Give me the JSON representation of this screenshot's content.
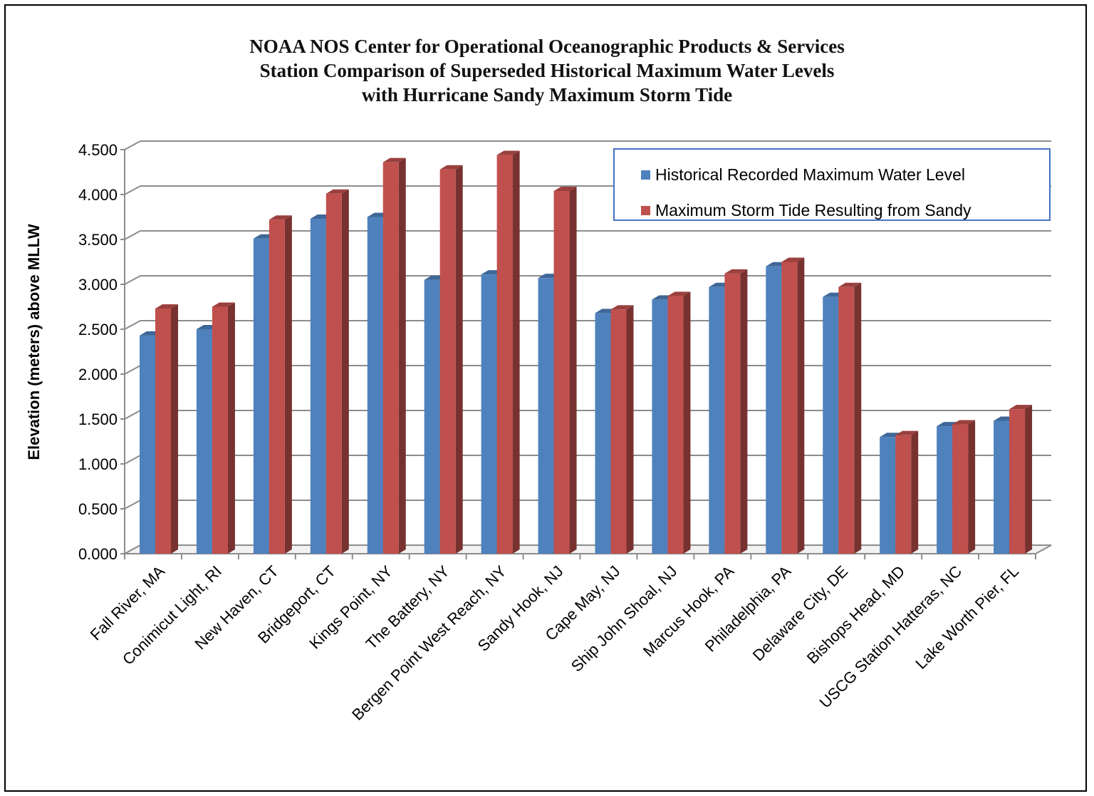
{
  "chart_data": {
    "type": "bar",
    "title_lines": [
      "NOAA NOS Center for Operational Oceanographic Products & Services",
      "Station Comparison of Superseded Historical Maximum Water Levels",
      "with Hurricane Sandy Maximum Storm Tide"
    ],
    "ylabel": "Elevation (meters) above MLLW",
    "xlabel": "",
    "ylim": [
      0,
      4.5
    ],
    "yticks": [
      "0.000",
      "0.500",
      "1.000",
      "1.500",
      "2.000",
      "2.500",
      "3.000",
      "3.500",
      "4.000",
      "4.500"
    ],
    "grid": true,
    "legend_position": "top-right",
    "categories": [
      "Fall River, MA",
      "Conimicut Light, RI",
      "New Haven, CT",
      "Bridgeport, CT",
      "Kings Point, NY",
      "The Battery, NY",
      "Bergen Point West Reach, NY",
      "Sandy Hook, NJ",
      "Cape May, NJ",
      "Ship John Shoal, NJ",
      "Marcus Hook, PA",
      "Philadelphia, PA",
      "Delaware City, DE",
      "Bishops Head, MD",
      "USCG Station Hatteras, NC",
      "Lake Worth Pier, FL"
    ],
    "series": [
      {
        "name": "Historical Recorded Maximum Water Level",
        "color": "#4F81BD",
        "values": [
          2.43,
          2.5,
          3.51,
          3.73,
          3.75,
          3.05,
          3.11,
          3.07,
          2.68,
          2.83,
          2.97,
          3.2,
          2.86,
          1.3,
          1.42,
          1.48
        ]
      },
      {
        "name": "Maximum Storm Tide Resulting from Sandy",
        "color": "#C0504D",
        "values": [
          2.73,
          2.75,
          3.72,
          4.01,
          4.36,
          4.28,
          4.44,
          4.04,
          2.72,
          2.87,
          3.12,
          3.25,
          2.97,
          1.32,
          1.44,
          1.61
        ]
      }
    ]
  }
}
